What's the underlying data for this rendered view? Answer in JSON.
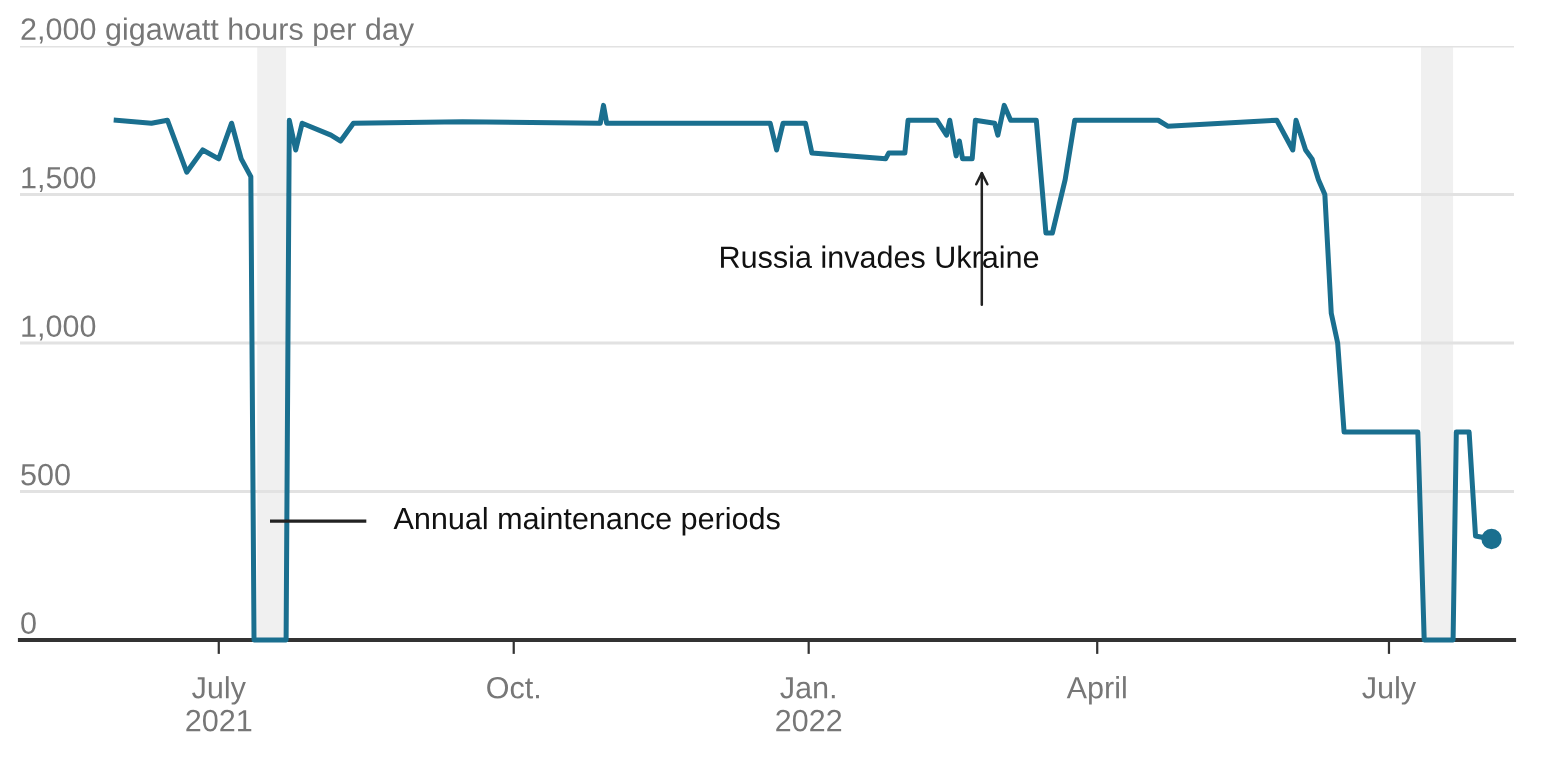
{
  "chart_data": {
    "type": "line",
    "xlim": [
      "2021-04-30",
      "2022-08-09"
    ],
    "xticks": [
      {
        "value": "2021-07-01",
        "label": "July\n2021"
      },
      {
        "value": "2021-10-01",
        "label": "Oct."
      },
      {
        "value": "2022-01-01",
        "label": "Jan.\n2022"
      },
      {
        "value": "2022-04-01",
        "label": "April"
      },
      {
        "value": "2022-07-01",
        "label": "July"
      }
    ],
    "ylim": [
      0,
      2000
    ],
    "yticks": [
      0,
      {
        "value": 500,
        "label": "500"
      },
      {
        "value": 1000,
        "label": "1,000"
      },
      {
        "value": 1500,
        "label": "1,500"
      },
      {
        "value": 2000,
        "label": "2,000 gigawatt hours per day"
      }
    ],
    "grid": "y",
    "bands": [
      {
        "axis": "x",
        "from": "2021-07-13",
        "to": "2021-07-22",
        "color": "#f0f0f0"
      },
      {
        "axis": "x",
        "from": "2022-07-11",
        "to": "2022-07-21",
        "color": "#f0f0f0"
      }
    ],
    "annotations": [
      "Annual maintenance periods",
      {
        "text": "Russia invades Ukraine",
        "x": "2022-02-24",
        "y": 1600
      }
    ],
    "series": [
      {
        "color": "#1a6f8f",
        "x": [
          "2021-05-30",
          "2021-06-10",
          "2021-06-15",
          "2021-06-21",
          "2021-06-26",
          "2021-07-01",
          "2021-07-05",
          "2021-07-08",
          "2021-07-11",
          "2021-07-12",
          "2021-07-22",
          "2021-07-23",
          "2021-07-25",
          "2021-07-27",
          "2021-08-05",
          "2021-08-08",
          "2021-08-12",
          "2021-09-15",
          "2021-10-28",
          "2021-10-29",
          "2021-10-30",
          "2021-12-20",
          "2021-12-22",
          "2021-12-24",
          "2021-12-31",
          "2022-01-02",
          "2022-01-25",
          "2022-01-26",
          "2022-01-31",
          "2022-02-01",
          "2022-02-10",
          "2022-02-13",
          "2022-02-14",
          "2022-02-16",
          "2022-02-17",
          "2022-02-18",
          "2022-02-21",
          "2022-02-22",
          "2022-02-28",
          "2022-03-01",
          "2022-03-03",
          "2022-03-05",
          "2022-03-13",
          "2022-03-16",
          "2022-03-18",
          "2022-03-22",
          "2022-03-25",
          "2022-04-20",
          "2022-04-23",
          "2022-05-27",
          "2022-06-01",
          "2022-06-02",
          "2022-06-05",
          "2022-06-07",
          "2022-06-09",
          "2022-06-11",
          "2022-06-13",
          "2022-06-15",
          "2022-06-17",
          "2022-07-10",
          "2022-07-12",
          "2022-07-21",
          "2022-07-22",
          "2022-07-26",
          "2022-07-28",
          "2022-08-02"
        ],
        "values": [
          1750,
          1740,
          1750,
          1575,
          1650,
          1620,
          1740,
          1620,
          1560,
          0,
          0,
          1750,
          1650,
          1740,
          1700,
          1680,
          1740,
          1745,
          1740,
          1800,
          1740,
          1740,
          1650,
          1740,
          1740,
          1640,
          1620,
          1640,
          1640,
          1750,
          1750,
          1700,
          1750,
          1630,
          1680,
          1620,
          1620,
          1750,
          1740,
          1700,
          1800,
          1750,
          1750,
          1370,
          1370,
          1550,
          1750,
          1750,
          1730,
          1750,
          1650,
          1750,
          1650,
          1620,
          1550,
          1500,
          1100,
          1000,
          700,
          700,
          0,
          0,
          700,
          700,
          350,
          340
        ]
      },
      {
        "type": "scatter",
        "color": "#1a6f8f",
        "x": [
          "2022-08-02"
        ],
        "values": [
          340
        ]
      }
    ]
  }
}
